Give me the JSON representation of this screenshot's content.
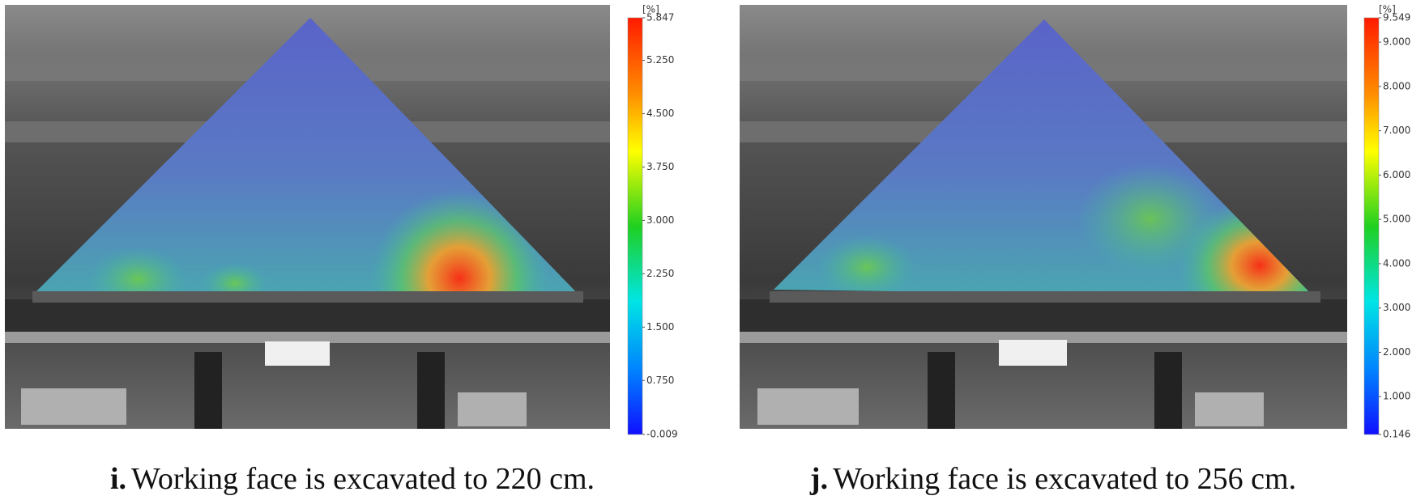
{
  "panels": [
    {
      "colorbar": {
        "unit": "[%]",
        "ticks": [
          "5.847",
          "5.250",
          "4.500",
          "3.750",
          "3.000",
          "2.250",
          "1.500",
          "0.750",
          "-0.009"
        ]
      },
      "caption": {
        "label": "i.",
        "text": "Working face is excavated to 220 cm."
      }
    },
    {
      "colorbar": {
        "unit": "[%]",
        "ticks": [
          "9.549",
          "9.000",
          "8.000",
          "7.000",
          "6.000",
          "5.000",
          "4.000",
          "3.000",
          "2.000",
          "1.000",
          "0.146"
        ]
      },
      "caption": {
        "label": "j.",
        "text": "Working face is excavated to 256 cm."
      }
    }
  ]
}
